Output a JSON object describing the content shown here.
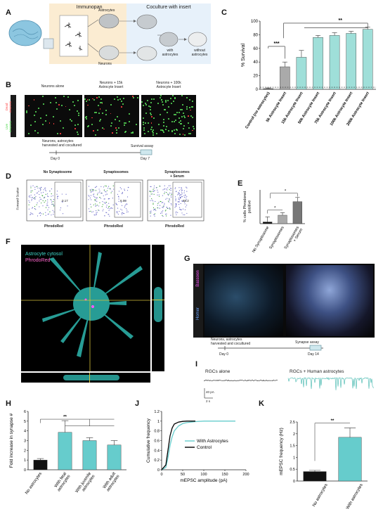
{
  "panels": {
    "A": {
      "label": "A",
      "immunopan_label": "Immunopan",
      "coculture_label": "Coculture with insert",
      "astrocytes_label": "Astrocytes",
      "neurons_label": "Neurons",
      "with_astro_label": "with\nastrocytes",
      "without_astro_label": "without\nastrocytes"
    },
    "B": {
      "label": "B",
      "col_titles": [
        "Neurons alone",
        "Neurons + 15k\nAstrocyte Insert",
        "Neurons + 100k\nAstrocyte Insert"
      ],
      "dead_label": "Dead\nneurons",
      "live_label": "Live\nneurons",
      "timeline_text": "Neurons, astrocytes\nharvested and cocultured",
      "survival_assay": "Survival assay",
      "day0": "Day 0",
      "day7": "Day 7"
    },
    "C": {
      "label": "C"
    },
    "D": {
      "label": "D",
      "titles": [
        "No Synaptosome",
        "Synaptosomes",
        "Synaptosomes\n+ Serum"
      ],
      "xlabel": "PhrodoRed",
      "ylabel": "Forward Scatter",
      "gate_values": [
        "0.17",
        "6.00",
        "88.2"
      ]
    },
    "E": {
      "label": "E"
    },
    "F": {
      "label": "F",
      "legend_cytosol": "Astrocyte cytosol",
      "legend_phrodo": "PhrodoRed"
    },
    "G": {
      "label": "G",
      "bassoon": "Bassoon",
      "homer": "Homer",
      "timeline_text": "Neurons, astrocytes\nharvested and cocultured",
      "synapse_assay": "Synapse assay",
      "day0": "Day 0",
      "day14": "Day 14"
    },
    "H": {
      "label": "H"
    },
    "I": {
      "label": "I",
      "rgc_alone": "RGCs alone",
      "rgc_human": "RGCs + Human astrocytes",
      "scale_pa": "40 pA",
      "scale_s": "2 s"
    },
    "J": {
      "label": "J"
    },
    "K": {
      "label": "K"
    }
  },
  "chart_data": [
    {
      "panel": "C",
      "type": "bar",
      "ylabel": "% Survival",
      "ylim": [
        0,
        100
      ],
      "yticks": [
        0,
        20,
        40,
        60,
        80,
        100
      ],
      "categories": [
        "Control (no astrocytes)",
        "5k Astrocyte Insert",
        "15k Astrocyte Insert",
        "50k Astrocyte Insert",
        "75k Astrocyte Insert",
        "100k Astrocyte Insert",
        "200k Astrocyte Insert"
      ],
      "values": [
        1,
        33,
        47,
        76,
        79,
        82,
        88
      ],
      "errors": [
        1,
        7,
        10,
        3,
        4,
        3,
        3
      ],
      "colors": [
        "#555555",
        "#aaaaaa",
        "#9fdfd9",
        "#9fdfd9",
        "#9fdfd9",
        "#9fdfd9",
        "#9fdfd9"
      ],
      "significance": [
        "***",
        "**"
      ]
    },
    {
      "panel": "E",
      "type": "bar",
      "ylabel": "% cells Phrodored\npositive",
      "ylim": [
        0,
        20
      ],
      "categories": [
        "No Synaptosome",
        "Synaptosomes",
        "Synaptosomes\n+ Serum"
      ],
      "values": [
        1,
        5,
        13
      ],
      "errors": [
        3,
        1.5,
        2.5
      ],
      "colors": [
        "#111111",
        "#aaaaaa",
        "#777777"
      ],
      "significance": [
        "*",
        "*"
      ]
    },
    {
      "panel": "H",
      "type": "bar",
      "ylabel": "Fold increase in synapse #",
      "ylim": [
        0,
        6
      ],
      "yticks": [
        0,
        1,
        2,
        3,
        4,
        5,
        6
      ],
      "categories": [
        "No astrocytes",
        "With fetal\nastrocytes",
        "With juvenile\nastrocytes",
        "With adult\nastrocytes"
      ],
      "values": [
        1.0,
        3.85,
        3.0,
        2.55
      ],
      "errors": [
        0.15,
        1.2,
        0.3,
        0.45
      ],
      "colors": [
        "#111111",
        "#66cccc",
        "#66cccc",
        "#66cccc"
      ],
      "significance": [
        "**"
      ]
    },
    {
      "panel": "J",
      "type": "line",
      "xlabel": "mEPSC amplitude (pA)",
      "ylabel": "Cumulative frequency",
      "xlim": [
        0,
        200
      ],
      "ylim": [
        0,
        1.2
      ],
      "xticks": [
        0,
        50,
        100,
        150,
        200
      ],
      "yticks": [
        0,
        0.2,
        0.4,
        0.6,
        0.8,
        1,
        1.2
      ],
      "series": [
        {
          "name": "With Astrocytes",
          "color": "#66cccc",
          "x": [
            0,
            10,
            15,
            20,
            25,
            30,
            40,
            50,
            60,
            80,
            100,
            140,
            175
          ],
          "y": [
            0,
            0.05,
            0.25,
            0.5,
            0.68,
            0.8,
            0.9,
            0.95,
            0.97,
            0.99,
            1,
            1,
            1
          ]
        },
        {
          "name": "Control",
          "color": "#000000",
          "x": [
            0,
            10,
            15,
            20,
            25,
            30,
            40,
            50,
            60,
            80
          ],
          "y": [
            0,
            0.1,
            0.4,
            0.7,
            0.86,
            0.94,
            0.98,
            0.995,
            1,
            1
          ]
        }
      ]
    },
    {
      "panel": "K",
      "type": "bar",
      "ylabel": "mEPSC frequency (Hz)",
      "ylim": [
        0,
        2.5
      ],
      "yticks": [
        0,
        0.5,
        1,
        1.5,
        2,
        2.5
      ],
      "categories": [
        "No astrocytes",
        "With astrocytes"
      ],
      "values": [
        0.4,
        1.85
      ],
      "errors": [
        0.05,
        0.4
      ],
      "colors": [
        "#111111",
        "#66cccc"
      ],
      "significance": [
        "**"
      ]
    }
  ]
}
